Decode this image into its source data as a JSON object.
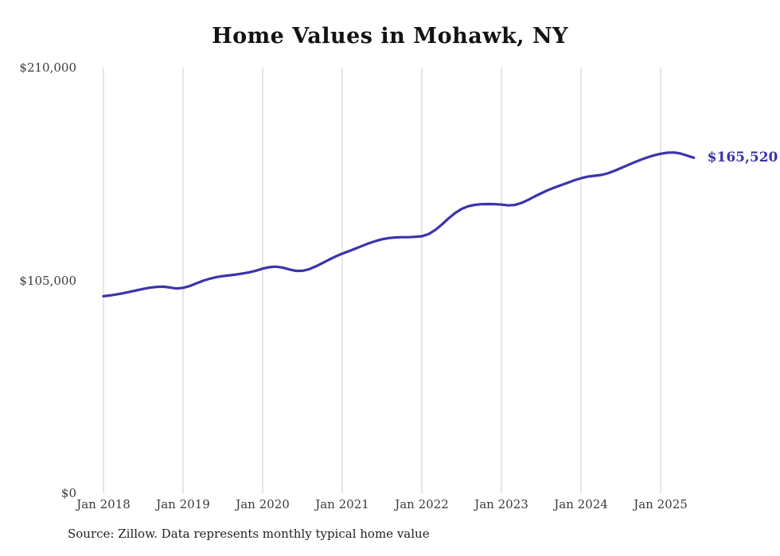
{
  "title": "Home Values in Mohawk, NY",
  "source_note": "Source: Zillow. Data represents monthly typical home value",
  "colors": {
    "line": "#3b33ac",
    "grid": "#cccccc",
    "title_text": "#131313",
    "axis_text": "#3a3a3a"
  },
  "chart_data": {
    "type": "line",
    "title": "Home Values in Mohawk, NY",
    "xlabel": "",
    "ylabel": "",
    "x_start": "Jan 2018",
    "x_interval": "monthly",
    "x_tick_labels": [
      "Jan 2018",
      "Jan 2019",
      "Jan 2020",
      "Jan 2021",
      "Jan 2022",
      "Jan 2023",
      "Jan 2024",
      "Jan 2025"
    ],
    "y_ticks": [
      {
        "value": 0,
        "label": "$0"
      },
      {
        "value": 105000,
        "label": "$105,000"
      },
      {
        "value": 210000,
        "label": "$210,000"
      }
    ],
    "ylim": [
      0,
      210000
    ],
    "grid": "vertical-only",
    "legend": "none",
    "series_name": "Typical home value",
    "values": [
      97200,
      97600,
      98100,
      98700,
      99400,
      100100,
      100800,
      101400,
      101800,
      101900,
      101500,
      101000,
      101300,
      102200,
      103500,
      104800,
      105800,
      106600,
      107100,
      107500,
      107900,
      108400,
      109000,
      109800,
      110800,
      111500,
      111800,
      111300,
      110400,
      109700,
      109700,
      110500,
      111900,
      113500,
      115200,
      116800,
      118200,
      119400,
      120700,
      122000,
      123300,
      124400,
      125300,
      125900,
      126200,
      126300,
      126300,
      126500,
      126800,
      127800,
      129800,
      132500,
      135500,
      138200,
      140300,
      141600,
      142300,
      142600,
      142700,
      142600,
      142400,
      142000,
      142200,
      143200,
      144700,
      146400,
      148000,
      149500,
      150800,
      152000,
      153200,
      154400,
      155400,
      156200,
      156600,
      157000,
      157800,
      159000,
      160400,
      161800,
      163200,
      164500,
      165700,
      166700,
      167500,
      168000,
      168100,
      167600,
      166600,
      165520
    ],
    "final_value": 165520,
    "final_value_label": "$165,520"
  }
}
